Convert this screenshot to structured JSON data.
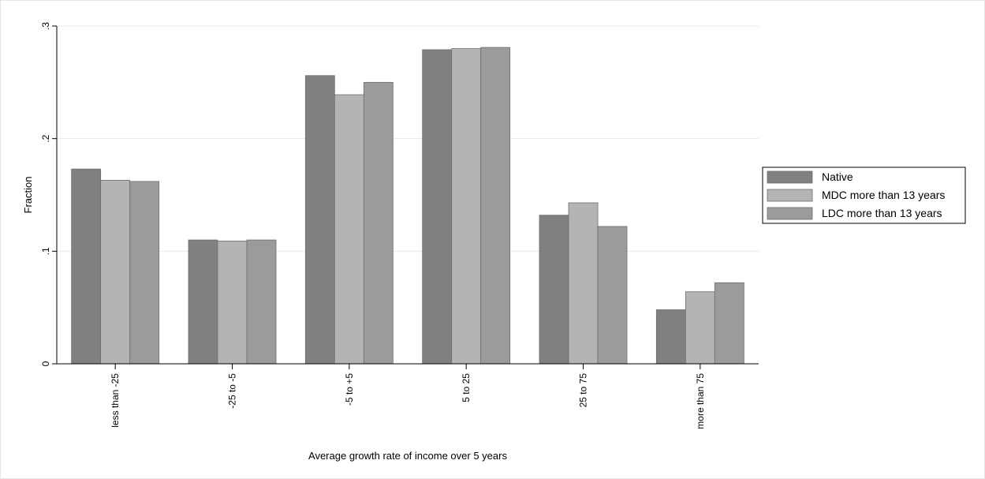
{
  "chart_data": {
    "type": "bar",
    "xlabel": "Average growth rate of income over 5 years",
    "ylabel": "Fraction",
    "ylim": [
      0,
      0.3
    ],
    "yticks": [
      {
        "value": 0,
        "label": "0"
      },
      {
        "value": 0.1,
        "label": ".1"
      },
      {
        "value": 0.2,
        "label": ".2"
      },
      {
        "value": 0.3,
        "label": ".3"
      }
    ],
    "grid": true,
    "legend_position": "right",
    "categories": [
      "less than -25",
      "-25 to -5",
      "-5 to +5",
      "5 to 25",
      "25 to 75",
      "more than 75"
    ],
    "series": [
      {
        "name": "Native",
        "color": "#808080",
        "values": [
          0.173,
          0.11,
          0.256,
          0.279,
          0.132,
          0.048
        ]
      },
      {
        "name": "MDC more than 13 years",
        "color": "#b4b4b4",
        "values": [
          0.163,
          0.109,
          0.239,
          0.28,
          0.143,
          0.064
        ]
      },
      {
        "name": "LDC more than 13 years",
        "color": "#9b9b9b",
        "values": [
          0.162,
          0.11,
          0.25,
          0.281,
          0.122,
          0.072
        ]
      }
    ]
  }
}
